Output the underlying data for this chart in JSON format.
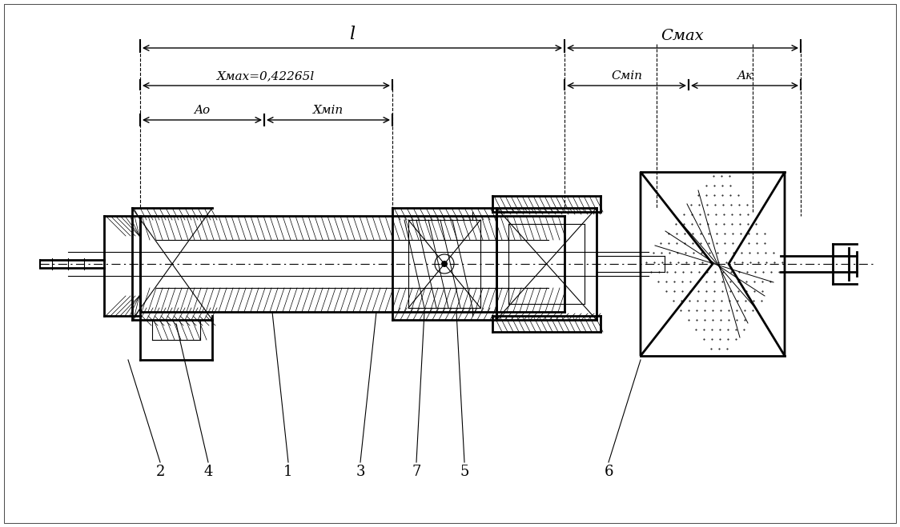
{
  "bg_color": "#ffffff",
  "line_color": "#000000",
  "hatch_color": "#000000",
  "title": "",
  "annotations": {
    "l_label": "l",
    "c_max_label": "Cмax",
    "x_max_label": "Xмax=0,42265l",
    "c_min_label": "Cмin",
    "a_k_label": "Aк",
    "a_0_label": "Aо",
    "x_min_label": "Xмin"
  },
  "part_labels": [
    "2",
    "4",
    "1",
    "3",
    "7",
    "5",
    "6"
  ],
  "figsize": [
    11.24,
    6.59
  ],
  "dpi": 100
}
